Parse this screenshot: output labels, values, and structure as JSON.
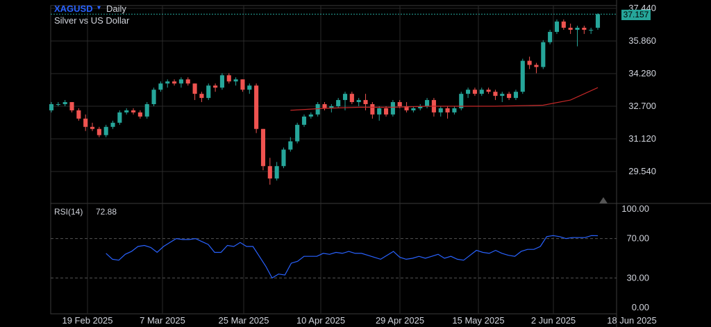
{
  "header": {
    "symbol": "XAGUSD",
    "caret": "▾",
    "timeframe": "Daily",
    "description": "Silver vs US Dollar"
  },
  "last_price_label": "37.157",
  "indicator": {
    "label": "RSI(14)",
    "value": "72.88"
  },
  "colors": {
    "up": "#26a69a",
    "down": "#ef5350",
    "ma": "#c62828",
    "rsi": "#2962ff",
    "bg": "#000000",
    "grid": "#3a3a3a",
    "text": "#d1d4dc"
  },
  "icons": {
    "caret": "chevron-down-icon",
    "alert": "alert-marker-icon"
  },
  "chart_data": [
    {
      "type": "candlestick",
      "title": "XAGUSD Daily",
      "subtitle": "Silver vs US Dollar",
      "y_ticks": [
        "37.440",
        "35.860",
        "34.280",
        "32.700",
        "31.120",
        "29.540"
      ],
      "ylim": [
        28.7,
        37.5
      ],
      "x_ticks": [
        "19 Feb 2025",
        "7 Mar 2025",
        "25 Mar 2025",
        "10 Apr 2025",
        "29 Apr 2025",
        "15 May 2025",
        "2 Jun 2025",
        "18 Jun 2025"
      ],
      "grid": true,
      "candles": [
        [
          32.5,
          32.9,
          32.4,
          32.8
        ],
        [
          32.8,
          32.9,
          32.7,
          32.8
        ],
        [
          32.8,
          33.0,
          32.7,
          32.9
        ],
        [
          32.9,
          32.9,
          32.4,
          32.5
        ],
        [
          32.5,
          32.6,
          32.0,
          32.1
        ],
        [
          32.1,
          32.3,
          31.5,
          31.7
        ],
        [
          31.7,
          31.9,
          31.5,
          31.6
        ],
        [
          31.6,
          31.7,
          31.2,
          31.3
        ],
        [
          31.3,
          31.8,
          31.2,
          31.7
        ],
        [
          31.7,
          32.0,
          31.6,
          31.9
        ],
        [
          31.9,
          32.5,
          31.8,
          32.4
        ],
        [
          32.4,
          32.6,
          32.3,
          32.5
        ],
        [
          32.5,
          32.6,
          32.3,
          32.4
        ],
        [
          32.4,
          32.5,
          32.1,
          32.2
        ],
        [
          32.2,
          32.9,
          32.1,
          32.8
        ],
        [
          32.8,
          33.6,
          32.7,
          33.5
        ],
        [
          33.5,
          33.9,
          33.4,
          33.8
        ],
        [
          33.8,
          34.0,
          33.6,
          33.9
        ],
        [
          33.9,
          34.0,
          33.7,
          33.8
        ],
        [
          33.8,
          34.1,
          33.6,
          34.0
        ],
        [
          34.0,
          34.1,
          33.7,
          33.8
        ],
        [
          33.8,
          33.8,
          33.0,
          33.3
        ],
        [
          33.3,
          33.4,
          32.9,
          33.1
        ],
        [
          33.1,
          33.8,
          33.0,
          33.7
        ],
        [
          33.7,
          33.8,
          33.4,
          33.6
        ],
        [
          33.6,
          34.3,
          33.5,
          34.2
        ],
        [
          34.2,
          34.3,
          33.8,
          33.9
        ],
        [
          33.9,
          34.1,
          33.7,
          34.0
        ],
        [
          34.0,
          34.0,
          33.4,
          33.5
        ],
        [
          33.5,
          33.8,
          33.3,
          33.7
        ],
        [
          33.7,
          33.8,
          31.4,
          31.6
        ],
        [
          31.6,
          31.6,
          29.6,
          29.8
        ],
        [
          29.8,
          30.2,
          28.9,
          29.2
        ],
        [
          29.2,
          30.0,
          29.1,
          29.8
        ],
        [
          29.8,
          30.7,
          29.7,
          30.6
        ],
        [
          30.6,
          31.2,
          30.5,
          31.0
        ],
        [
          31.0,
          31.9,
          30.9,
          31.8
        ],
        [
          31.8,
          32.3,
          31.7,
          32.2
        ],
        [
          32.2,
          32.4,
          32.1,
          32.3
        ],
        [
          32.3,
          32.9,
          32.2,
          32.8
        ],
        [
          32.8,
          32.9,
          32.5,
          32.6
        ],
        [
          32.6,
          32.8,
          32.4,
          32.7
        ],
        [
          32.7,
          33.1,
          32.6,
          33.0
        ],
        [
          33.0,
          33.4,
          32.5,
          33.3
        ],
        [
          33.3,
          33.4,
          32.8,
          32.9
        ],
        [
          32.9,
          33.1,
          32.7,
          33.0
        ],
        [
          33.0,
          33.3,
          32.5,
          32.8
        ],
        [
          32.8,
          32.9,
          32.1,
          32.3
        ],
        [
          32.3,
          32.7,
          32.0,
          32.6
        ],
        [
          32.6,
          32.7,
          32.2,
          32.3
        ],
        [
          32.3,
          33.0,
          32.2,
          32.9
        ],
        [
          32.9,
          33.0,
          32.6,
          32.7
        ],
        [
          32.7,
          32.9,
          32.4,
          32.5
        ],
        [
          32.5,
          32.7,
          32.4,
          32.6
        ],
        [
          32.6,
          32.8,
          32.5,
          32.7
        ],
        [
          32.7,
          33.1,
          32.6,
          33.0
        ],
        [
          33.0,
          33.1,
          32.2,
          32.4
        ],
        [
          32.4,
          32.7,
          32.2,
          32.6
        ],
        [
          32.6,
          32.7,
          32.1,
          32.4
        ],
        [
          32.4,
          32.7,
          32.3,
          32.6
        ],
        [
          32.6,
          33.4,
          32.5,
          33.3
        ],
        [
          33.3,
          33.6,
          33.1,
          33.5
        ],
        [
          33.5,
          33.6,
          33.2,
          33.3
        ],
        [
          33.3,
          33.6,
          33.2,
          33.5
        ],
        [
          33.5,
          33.6,
          33.3,
          33.4
        ],
        [
          33.4,
          33.5,
          33.0,
          33.2
        ],
        [
          33.2,
          33.4,
          32.9,
          33.3
        ],
        [
          33.3,
          33.4,
          33.0,
          33.1
        ],
        [
          33.1,
          33.5,
          33.0,
          33.4
        ],
        [
          33.4,
          35.0,
          33.3,
          34.9
        ],
        [
          34.9,
          35.1,
          34.5,
          34.7
        ],
        [
          34.7,
          34.8,
          34.3,
          34.6
        ],
        [
          34.6,
          35.9,
          34.5,
          35.8
        ],
        [
          35.8,
          36.4,
          35.7,
          36.3
        ],
        [
          36.3,
          36.9,
          36.2,
          36.8
        ],
        [
          36.8,
          36.9,
          36.4,
          36.5
        ],
        [
          36.5,
          36.7,
          36.2,
          36.4
        ],
        [
          36.4,
          36.6,
          35.6,
          36.5
        ],
        [
          36.5,
          36.6,
          36.2,
          36.4
        ],
        [
          36.4,
          36.5,
          36.2,
          36.4
        ],
        [
          36.5,
          37.2,
          36.4,
          37.157
        ]
      ],
      "moving_average": [
        [
          35,
          32.5
        ],
        [
          40,
          32.6
        ],
        [
          45,
          32.65
        ],
        [
          50,
          32.65
        ],
        [
          55,
          32.7
        ],
        [
          60,
          32.7
        ],
        [
          65,
          32.7
        ],
        [
          68,
          32.72
        ],
        [
          72,
          32.75
        ],
        [
          76,
          33.0
        ],
        [
          80,
          33.6
        ]
      ]
    },
    {
      "type": "line",
      "title": "RSI(14)",
      "y_ticks": [
        "100.00",
        "70.00",
        "30.00",
        "0.00"
      ],
      "ylim": [
        0,
        100
      ],
      "reference_lines": [
        70,
        30
      ],
      "series": [
        {
          "name": "RSI(14)",
          "values": [
            55,
            49,
            48,
            54,
            57,
            62,
            63,
            61,
            56,
            62,
            66,
            70,
            69,
            69,
            70,
            67,
            64,
            56,
            56,
            63,
            62,
            66,
            62,
            62,
            52,
            42,
            30,
            34,
            33,
            45,
            47,
            52,
            52,
            52,
            55,
            54,
            56,
            55,
            57,
            55,
            55,
            53,
            51,
            49,
            53,
            57,
            51,
            49,
            50,
            52,
            50,
            52,
            54,
            50,
            52,
            49,
            48,
            53,
            58,
            56,
            55,
            58,
            55,
            53,
            52,
            57,
            59,
            59,
            62,
            72,
            73,
            72,
            70,
            71,
            71,
            71,
            73,
            72.88
          ]
        }
      ]
    }
  ]
}
